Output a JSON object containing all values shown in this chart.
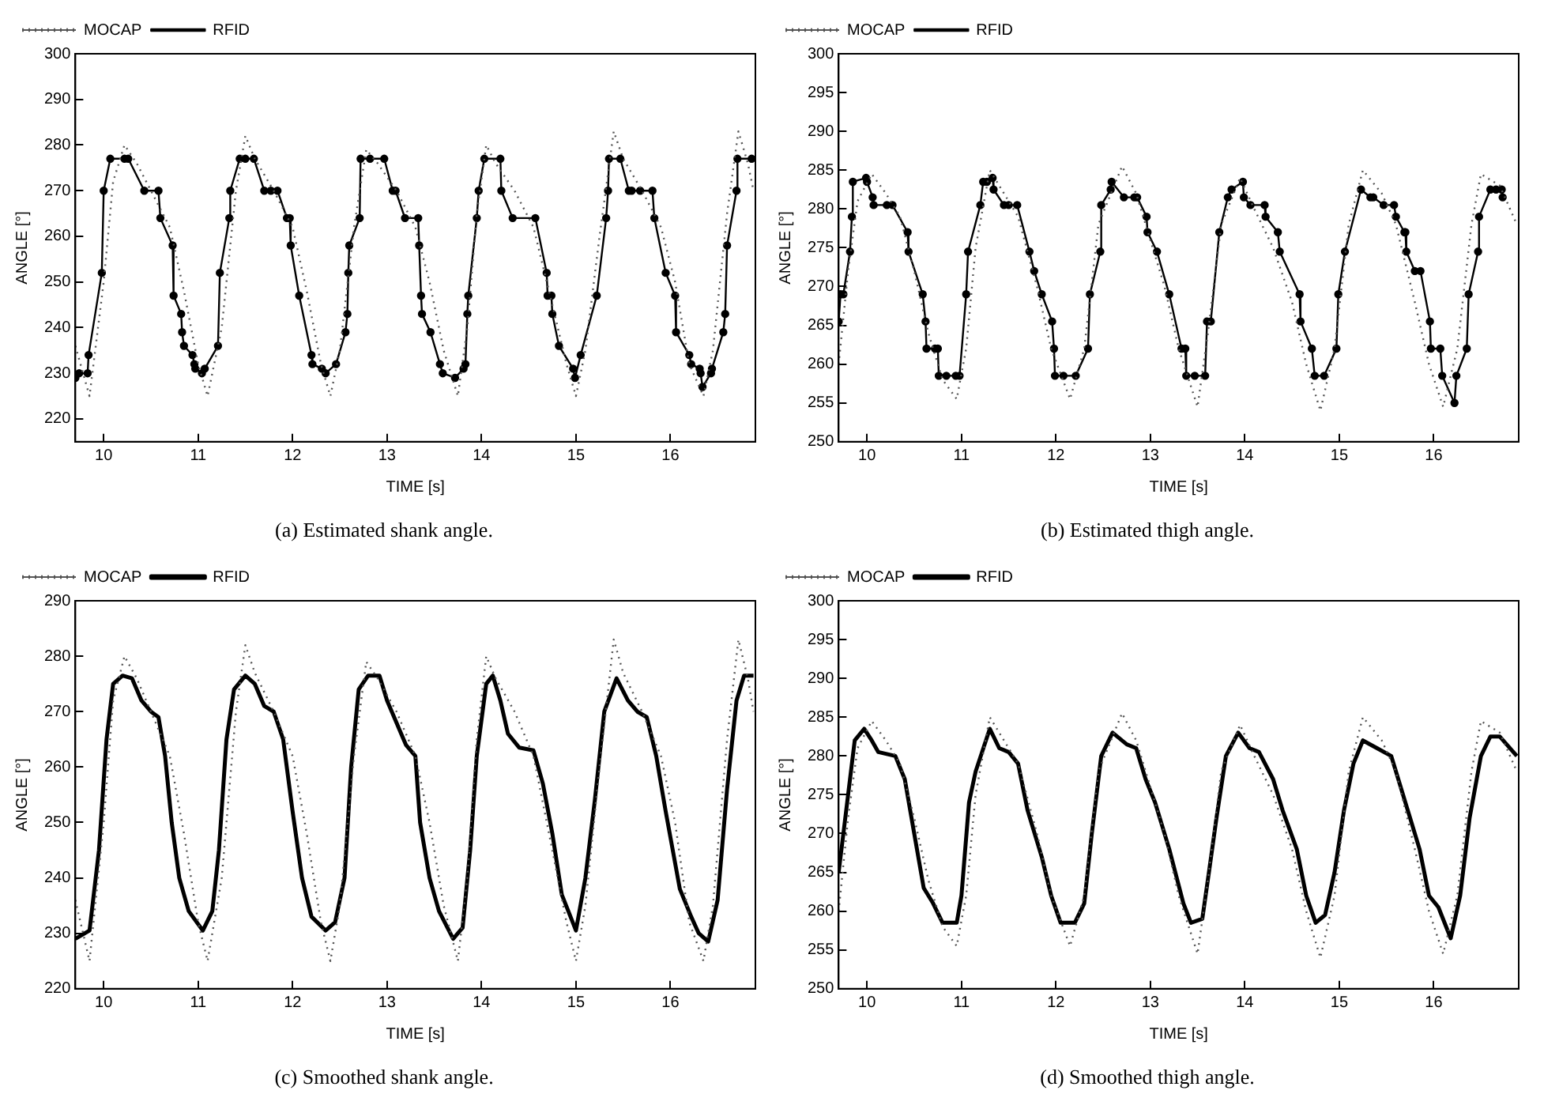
{
  "chart_data": [
    {
      "type": "line",
      "title": "(a) Estimated shank angle.",
      "xlabel": "TIME [s]",
      "ylabel": "ANGLE [°]",
      "xlim": [
        9.7,
        16.9
      ],
      "xticks": [
        10,
        11,
        12,
        13,
        14,
        15,
        16
      ],
      "ylim": [
        215,
        300
      ],
      "yticks": [
        220,
        230,
        240,
        250,
        260,
        270,
        280,
        290,
        300
      ],
      "legend": "top left",
      "series": [
        {
          "name": "MOCAP",
          "color": "#555555",
          "line_style": "dotted",
          "marker": "none",
          "x": [
            9.7,
            9.85,
            10.0,
            10.1,
            10.22,
            10.35,
            10.5,
            10.7,
            10.85,
            11.0,
            11.1,
            11.25,
            11.4,
            11.5,
            11.6,
            11.8,
            12.0,
            12.15,
            12.3,
            12.4,
            12.5,
            12.65,
            12.78,
            12.9,
            13.1,
            13.3,
            13.45,
            13.6,
            13.75,
            13.85,
            13.95,
            14.05,
            14.15,
            14.35,
            14.55,
            14.75,
            14.9,
            15.0,
            15.1,
            15.25,
            15.4,
            15.5,
            15.7,
            15.9,
            16.05,
            16.2,
            16.35,
            16.45,
            16.6,
            16.72,
            16.82,
            16.88
          ],
          "values": [
            236,
            225,
            250,
            272,
            280,
            276,
            270,
            262,
            248,
            232,
            225,
            240,
            270,
            282,
            277,
            270,
            262,
            248,
            232,
            225,
            235,
            262,
            279,
            276,
            270,
            262,
            250,
            235,
            225,
            240,
            265,
            280,
            276,
            270,
            262,
            245,
            232,
            225,
            235,
            260,
            283,
            277,
            270,
            262,
            250,
            232,
            225,
            235,
            265,
            283,
            276,
            270
          ]
        },
        {
          "name": "RFID",
          "color": "#000000",
          "line_style": "solid",
          "marker": "circle",
          "x": [
            9.7,
            9.74,
            9.83,
            9.84,
            9.98,
            10.0,
            10.07,
            10.22,
            10.26,
            10.43,
            10.58,
            10.6,
            10.73,
            10.74,
            10.82,
            10.83,
            10.85,
            10.94,
            10.96,
            10.97,
            11.04,
            11.07,
            11.21,
            11.23,
            11.33,
            11.34,
            11.44,
            11.5,
            11.59,
            11.7,
            11.77,
            11.84,
            11.94,
            11.97,
            11.98,
            12.07,
            12.2,
            12.21,
            12.31,
            12.35,
            12.46,
            12.56,
            12.58,
            12.59,
            12.6,
            12.71,
            12.72,
            12.82,
            12.97,
            13.06,
            13.09,
            13.19,
            13.33,
            13.34,
            13.36,
            13.37,
            13.46,
            13.56,
            13.59,
            13.72,
            13.81,
            13.83,
            13.85,
            13.86,
            13.95,
            13.97,
            14.03,
            14.2,
            14.21,
            14.33,
            14.57,
            14.69,
            14.7,
            14.74,
            14.75,
            14.82,
            14.97,
            14.99,
            15.05,
            15.22,
            15.32,
            15.34,
            15.35,
            15.47,
            15.56,
            15.59,
            15.68,
            15.81,
            15.83,
            15.95,
            16.05,
            16.06,
            16.2,
            16.22,
            16.31,
            16.32,
            16.34,
            16.43,
            16.44,
            16.56,
            16.58,
            16.6,
            16.7,
            16.71,
            16.86
          ],
          "values": [
            229,
            230,
            230,
            234,
            252,
            270,
            277,
            277,
            277,
            270,
            270,
            264,
            258,
            247,
            243,
            239,
            236,
            234,
            232,
            231,
            230,
            231,
            236,
            252,
            264,
            270,
            277,
            277,
            277,
            270,
            270,
            270,
            264,
            264,
            258,
            247,
            234,
            232,
            231,
            230,
            232,
            239,
            243,
            252,
            258,
            264,
            277,
            277,
            277,
            270,
            270,
            264,
            264,
            258,
            247,
            243,
            239,
            232,
            230,
            229,
            231,
            232,
            243,
            247,
            264,
            270,
            277,
            277,
            270,
            264,
            264,
            252,
            247,
            247,
            243,
            236,
            231,
            229,
            234,
            247,
            264,
            270,
            277,
            277,
            270,
            270,
            270,
            270,
            264,
            252,
            247,
            239,
            234,
            232,
            231,
            230,
            227,
            230,
            231,
            239,
            243,
            258,
            270,
            277,
            277
          ]
        }
      ]
    },
    {
      "type": "line",
      "title": "(b) Estimated thigh angle.",
      "xlabel": "TIME [s]",
      "ylabel": "ANGLE [°]",
      "xlim": [
        9.7,
        16.9
      ],
      "xticks": [
        10,
        11,
        12,
        13,
        14,
        15,
        16
      ],
      "ylim": [
        250,
        300
      ],
      "yticks": [
        250,
        255,
        260,
        265,
        270,
        275,
        280,
        285,
        290,
        295,
        300
      ],
      "legend": "top left",
      "series": [
        {
          "name": "MOCAP",
          "color": "#555555",
          "line_style": "dotted",
          "marker": "none",
          "x": [
            9.7,
            9.8,
            9.9,
            10.05,
            10.2,
            10.35,
            10.5,
            10.65,
            10.8,
            10.95,
            11.05,
            11.15,
            11.3,
            11.45,
            11.6,
            11.8,
            11.95,
            12.15,
            12.3,
            12.45,
            12.7,
            12.85,
            13.0,
            13.15,
            13.3,
            13.5,
            13.62,
            13.75,
            13.95,
            14.1,
            14.3,
            14.5,
            14.65,
            14.8,
            14.95,
            15.1,
            15.25,
            15.45,
            15.6,
            15.8,
            15.95,
            16.1,
            16.25,
            16.4,
            16.5,
            16.7,
            16.88
          ],
          "values": [
            260,
            272,
            281,
            284.5,
            282,
            279,
            272,
            264,
            258,
            255.5,
            262,
            275,
            285,
            282,
            279,
            270,
            262,
            255.5,
            262,
            278,
            285.5,
            282,
            276,
            270,
            262,
            254.5,
            265,
            278,
            284,
            280,
            275,
            268,
            260,
            254,
            262,
            278,
            285,
            282,
            278,
            268,
            260,
            254.5,
            262,
            278,
            284.5,
            283,
            278
          ]
        },
        {
          "name": "RFID",
          "color": "#000000",
          "line_style": "solid",
          "marker": "circle",
          "x": [
            9.7,
            9.72,
            9.75,
            9.82,
            9.84,
            9.85,
            9.99,
            10.0,
            10.06,
            10.07,
            10.21,
            10.27,
            10.43,
            10.44,
            10.59,
            10.62,
            10.63,
            10.72,
            10.75,
            10.76,
            10.84,
            10.94,
            10.98,
            11.05,
            11.07,
            11.2,
            11.23,
            11.27,
            11.33,
            11.34,
            11.45,
            11.5,
            11.59,
            11.72,
            11.77,
            11.85,
            11.96,
            11.98,
            11.99,
            12.08,
            12.21,
            12.34,
            12.36,
            12.47,
            12.48,
            12.58,
            12.59,
            12.72,
            12.83,
            12.86,
            12.96,
            12.97,
            13.07,
            13.2,
            13.33,
            13.37,
            13.38,
            13.47,
            13.58,
            13.6,
            13.64,
            13.73,
            13.82,
            13.86,
            13.98,
            13.99,
            14.06,
            14.21,
            14.22,
            14.35,
            14.37,
            14.58,
            14.59,
            14.71,
            14.74,
            14.84,
            14.97,
            14.99,
            15.06,
            15.23,
            15.33,
            15.36,
            15.47,
            15.58,
            15.6,
            15.69,
            15.7,
            15.71,
            15.8,
            15.86,
            15.96,
            15.97,
            16.07,
            16.09,
            16.22,
            16.24,
            16.35,
            16.37,
            16.47,
            16.48,
            16.6,
            16.66,
            16.72,
            16.73
          ],
          "values": [
            265.5,
            269,
            269,
            274.5,
            279,
            283.5,
            284,
            283.5,
            281.5,
            280.5,
            280.5,
            280.5,
            277,
            274.5,
            269,
            265.5,
            262,
            262,
            262,
            258.5,
            258.5,
            258.5,
            258.5,
            269,
            274.5,
            280.5,
            283.5,
            283.5,
            284,
            282.5,
            280.5,
            280.5,
            280.5,
            274.5,
            272,
            269,
            265.5,
            262,
            258.5,
            258.5,
            258.5,
            262,
            269,
            274.5,
            280.5,
            282.5,
            283.5,
            281.5,
            281.5,
            281.5,
            279,
            277,
            274.5,
            269,
            262,
            262,
            258.5,
            258.5,
            258.5,
            265.5,
            265.5,
            277,
            281.5,
            282.5,
            283.5,
            281.5,
            280.5,
            280.5,
            279,
            277,
            274.5,
            269,
            265.5,
            262,
            258.5,
            258.5,
            262,
            269,
            274.5,
            282.5,
            281.5,
            281.5,
            280.5,
            280.5,
            279,
            277,
            277,
            274.5,
            272,
            272,
            265.5,
            262,
            262,
            258.5,
            255,
            258.5,
            262,
            269,
            274.5,
            279,
            282.5,
            282.5,
            282.5,
            281.5
          ]
        }
      ]
    },
    {
      "type": "line",
      "title": "(c) Smoothed shank angle.",
      "xlabel": "TIME [s]",
      "ylabel": "ANGLE [°]",
      "xlim": [
        9.7,
        16.9
      ],
      "xticks": [
        10,
        11,
        12,
        13,
        14,
        15,
        16
      ],
      "ylim": [
        220,
        290
      ],
      "yticks": [
        220,
        230,
        240,
        250,
        260,
        270,
        280,
        290
      ],
      "legend": "top left",
      "series": [
        {
          "name": "MOCAP",
          "color": "#555555",
          "line_style": "dotted",
          "marker": "none",
          "x": [
            9.7,
            9.85,
            10.0,
            10.1,
            10.22,
            10.35,
            10.5,
            10.7,
            10.85,
            11.0,
            11.1,
            11.25,
            11.4,
            11.5,
            11.6,
            11.8,
            12.0,
            12.15,
            12.3,
            12.4,
            12.5,
            12.65,
            12.78,
            12.9,
            13.1,
            13.3,
            13.45,
            13.6,
            13.75,
            13.85,
            13.95,
            14.05,
            14.15,
            14.35,
            14.55,
            14.75,
            14.9,
            15.0,
            15.1,
            15.25,
            15.4,
            15.5,
            15.7,
            15.9,
            16.05,
            16.2,
            16.35,
            16.45,
            16.6,
            16.72,
            16.82,
            16.88
          ],
          "values": [
            236,
            225,
            250,
            272,
            280,
            276,
            270,
            262,
            248,
            232,
            225,
            240,
            270,
            282,
            277,
            270,
            262,
            248,
            232,
            225,
            235,
            262,
            279,
            276,
            270,
            262,
            250,
            235,
            225,
            240,
            265,
            280,
            276,
            270,
            262,
            245,
            232,
            225,
            235,
            260,
            283,
            277,
            270,
            262,
            250,
            232,
            225,
            235,
            265,
            283,
            276,
            270
          ]
        },
        {
          "name": "RFID",
          "color": "#000000",
          "line_style": "solid",
          "marker": "none",
          "x": [
            9.7,
            9.85,
            9.95,
            10.03,
            10.1,
            10.2,
            10.3,
            10.4,
            10.5,
            10.58,
            10.65,
            10.72,
            10.8,
            10.9,
            11.05,
            11.15,
            11.22,
            11.3,
            11.38,
            11.5,
            11.6,
            11.7,
            11.8,
            11.9,
            12.0,
            12.1,
            12.2,
            12.35,
            12.45,
            12.55,
            12.62,
            12.7,
            12.8,
            12.92,
            13.0,
            13.1,
            13.2,
            13.3,
            13.35,
            13.45,
            13.55,
            13.7,
            13.8,
            13.88,
            13.95,
            14.05,
            14.12,
            14.2,
            14.28,
            14.4,
            14.55,
            14.65,
            14.75,
            14.85,
            15.0,
            15.1,
            15.2,
            15.3,
            15.43,
            15.55,
            15.65,
            15.75,
            15.85,
            15.95,
            16.1,
            16.22,
            16.3,
            16.4,
            16.5,
            16.6,
            16.7,
            16.78,
            16.88
          ],
          "values": [
            229,
            230.5,
            245,
            265,
            275,
            276.5,
            276,
            272,
            270,
            269,
            262,
            250,
            240,
            234,
            230.5,
            234,
            245,
            265,
            274,
            276.5,
            275,
            271,
            270,
            265,
            252,
            240,
            233,
            230.5,
            232,
            240,
            260,
            274,
            276.5,
            276.5,
            272,
            268,
            264,
            262,
            250,
            240,
            234,
            229,
            231,
            245,
            262,
            275,
            276.5,
            272,
            266,
            263.5,
            263,
            257,
            248,
            237,
            230.5,
            240,
            254,
            270,
            276,
            272,
            270,
            269,
            262,
            252,
            238,
            233,
            230,
            228.5,
            236,
            256,
            272,
            276.5,
            276.5
          ]
        }
      ]
    },
    {
      "type": "line",
      "title": "(d) Smoothed thigh angle.",
      "xlabel": "TIME [s]",
      "ylabel": "ANGLE [°]",
      "xlim": [
        9.7,
        16.9
      ],
      "xticks": [
        10,
        11,
        12,
        13,
        14,
        15,
        16
      ],
      "ylim": [
        250,
        300
      ],
      "yticks": [
        250,
        255,
        260,
        265,
        270,
        275,
        280,
        285,
        290,
        295,
        300
      ],
      "legend": "top left",
      "series": [
        {
          "name": "MOCAP",
          "color": "#555555",
          "line_style": "dotted",
          "marker": "none",
          "x": [
            9.7,
            9.8,
            9.9,
            10.05,
            10.2,
            10.35,
            10.5,
            10.65,
            10.8,
            10.95,
            11.05,
            11.15,
            11.3,
            11.45,
            11.6,
            11.8,
            11.95,
            12.15,
            12.3,
            12.45,
            12.7,
            12.85,
            13.0,
            13.15,
            13.3,
            13.5,
            13.62,
            13.75,
            13.95,
            14.1,
            14.3,
            14.5,
            14.65,
            14.8,
            14.95,
            15.1,
            15.25,
            15.45,
            15.6,
            15.8,
            15.95,
            16.1,
            16.25,
            16.4,
            16.5,
            16.7,
            16.88
          ],
          "values": [
            260,
            272,
            281,
            284.5,
            282,
            279,
            272,
            264,
            258,
            255.5,
            262,
            275,
            285,
            282,
            279,
            270,
            262,
            255.5,
            262,
            278,
            285.5,
            282,
            276,
            270,
            262,
            254.5,
            265,
            278,
            284,
            280,
            275,
            268,
            260,
            254,
            262,
            278,
            285,
            282,
            278,
            268,
            260,
            254.5,
            262,
            278,
            284.5,
            283,
            278
          ]
        },
        {
          "name": "RFID",
          "color": "#000000",
          "line_style": "solid",
          "marker": "none",
          "x": [
            9.7,
            9.8,
            9.87,
            9.97,
            10.05,
            10.12,
            10.3,
            10.4,
            10.5,
            10.6,
            10.7,
            10.8,
            10.95,
            11.0,
            11.08,
            11.15,
            11.3,
            11.4,
            11.5,
            11.6,
            11.7,
            11.85,
            11.95,
            12.05,
            12.2,
            12.3,
            12.38,
            12.48,
            12.6,
            12.75,
            12.85,
            12.95,
            13.05,
            13.2,
            13.35,
            13.43,
            13.55,
            13.62,
            13.7,
            13.8,
            13.93,
            14.05,
            14.15,
            14.3,
            14.4,
            14.55,
            14.65,
            14.75,
            14.85,
            14.95,
            15.05,
            15.15,
            15.25,
            15.4,
            15.55,
            15.65,
            15.75,
            15.85,
            15.95,
            16.05,
            16.18,
            16.28,
            16.38,
            16.5,
            16.6,
            16.7,
            16.88
          ],
          "values": [
            265,
            275,
            282,
            283.5,
            282,
            280.5,
            280,
            277,
            270,
            263,
            261,
            258.5,
            258.5,
            262,
            274,
            278,
            283.5,
            281,
            280.5,
            279,
            273,
            267,
            262,
            258.5,
            258.5,
            261,
            270,
            280,
            283,
            281.5,
            281,
            277,
            274,
            268,
            261,
            258.5,
            259,
            265,
            272,
            280,
            283,
            281,
            280.5,
            277,
            273,
            268,
            262,
            258.5,
            259.5,
            265,
            273,
            279,
            282,
            281,
            280,
            276,
            272,
            268,
            262,
            260.5,
            256.5,
            262,
            272,
            280,
            282.5,
            282.5,
            280
          ]
        }
      ]
    }
  ]
}
